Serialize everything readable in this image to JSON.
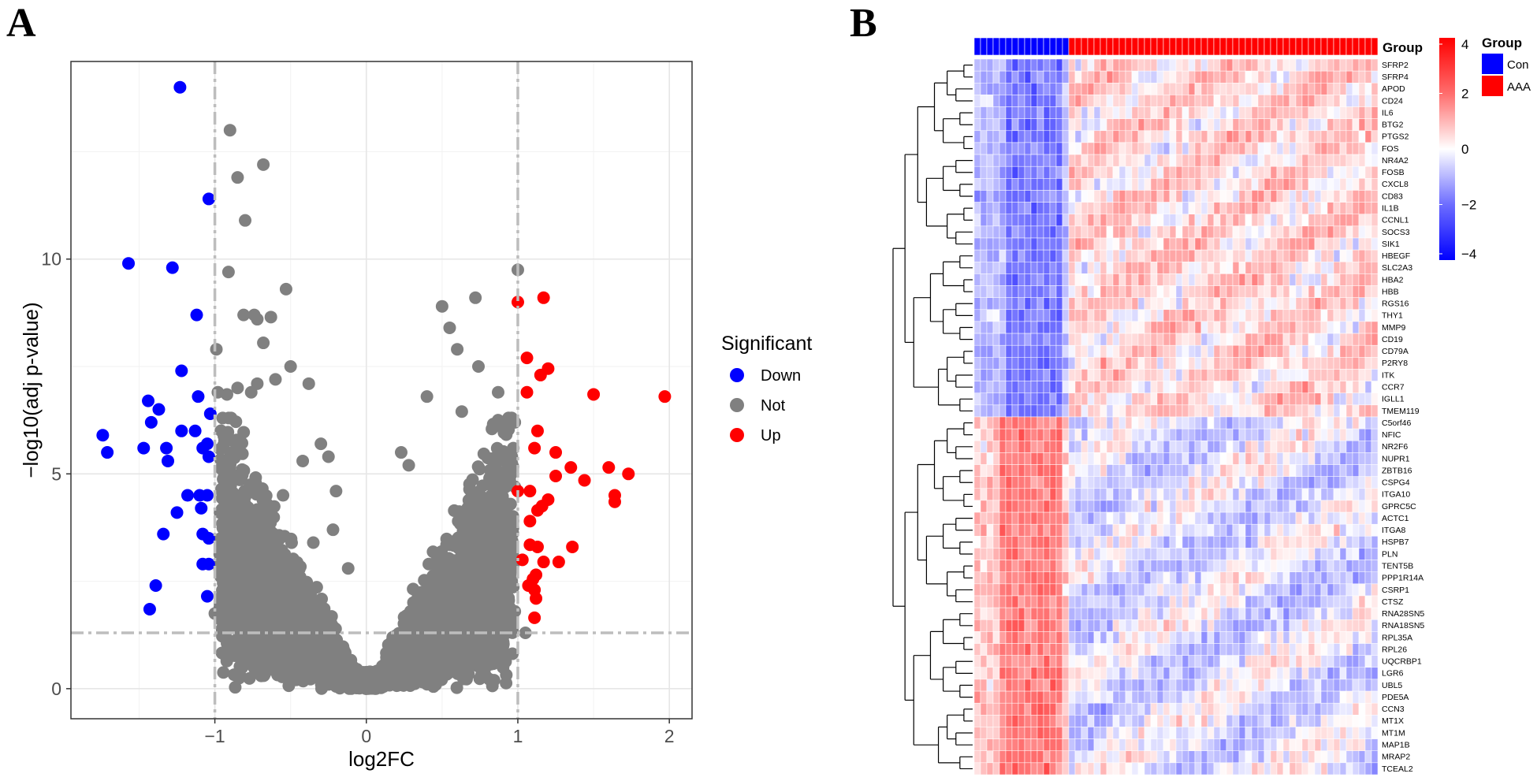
{
  "panels": {
    "a": "A",
    "b": "B"
  },
  "chart_data": [
    {
      "type": "scatter",
      "title": "",
      "xlabel": "log2FC",
      "ylabel": "−log10(adj p-value)",
      "xlim": [
        -1.95,
        2.15
      ],
      "ylim": [
        -0.7,
        14.6
      ],
      "x_ticks": [
        -1,
        0,
        1,
        2
      ],
      "x_tick_labels": [
        "−1",
        "0",
        "1",
        "2"
      ],
      "y_ticks": [
        0,
        5,
        10
      ],
      "y_tick_labels": [
        "0",
        "5",
        "10"
      ],
      "threshold_lines": {
        "x": [
          -1,
          1
        ],
        "y": 1.3
      },
      "legend": {
        "title": "Significant",
        "placement": "right",
        "entries": [
          {
            "label": "Down",
            "color": "#0000ff"
          },
          {
            "label": "Not",
            "color": "#808080"
          },
          {
            "label": "Up",
            "color": "#ff0000"
          }
        ]
      },
      "colors": {
        "Down": "#0000ff",
        "Not": "#808080",
        "Up": "#ff0000"
      },
      "series": [
        {
          "name": "Down",
          "points": [
            [
              -1.23,
              14.0
            ],
            [
              -1.04,
              11.4
            ],
            [
              -1.57,
              9.9
            ],
            [
              -1.28,
              9.8
            ],
            [
              -1.12,
              8.7
            ],
            [
              -1.22,
              7.4
            ],
            [
              -1.11,
              6.8
            ],
            [
              -1.44,
              6.7
            ],
            [
              -1.37,
              6.5
            ],
            [
              -1.42,
              6.2
            ],
            [
              -1.03,
              6.4
            ],
            [
              -1.22,
              6.0
            ],
            [
              -1.74,
              5.9
            ],
            [
              -1.13,
              6.0
            ],
            [
              -1.71,
              5.5
            ],
            [
              -1.47,
              5.6
            ],
            [
              -1.32,
              5.6
            ],
            [
              -1.05,
              5.7
            ],
            [
              -1.08,
              5.6
            ],
            [
              -1.31,
              5.3
            ],
            [
              -1.04,
              5.4
            ],
            [
              -1.18,
              4.5
            ],
            [
              -1.1,
              4.5
            ],
            [
              -1.05,
              4.5
            ],
            [
              -1.25,
              4.1
            ],
            [
              -1.09,
              4.2
            ],
            [
              -1.34,
              3.6
            ],
            [
              -1.08,
              3.6
            ],
            [
              -1.04,
              3.5
            ],
            [
              -1.08,
              2.9
            ],
            [
              -1.04,
              2.9
            ],
            [
              -1.39,
              2.4
            ],
            [
              -1.05,
              2.15
            ],
            [
              -1.43,
              1.85
            ]
          ]
        },
        {
          "name": "Up",
          "points": [
            [
              1.97,
              6.8
            ],
            [
              1.17,
              9.1
            ],
            [
              1.0,
              9.0
            ],
            [
              1.06,
              7.7
            ],
            [
              1.15,
              7.3
            ],
            [
              1.2,
              7.45
            ],
            [
              1.5,
              6.85
            ],
            [
              1.06,
              6.9
            ],
            [
              1.13,
              6.0
            ],
            [
              1.11,
              5.6
            ],
            [
              1.25,
              5.5
            ],
            [
              1.6,
              5.15
            ],
            [
              1.35,
              5.15
            ],
            [
              1.25,
              4.95
            ],
            [
              1.73,
              5.0
            ],
            [
              1.44,
              4.85
            ],
            [
              1.64,
              4.5
            ],
            [
              1.64,
              4.35
            ],
            [
              1.0,
              4.6
            ],
            [
              1.08,
              4.6
            ],
            [
              1.2,
              4.4
            ],
            [
              1.13,
              4.15
            ],
            [
              1.16,
              4.25
            ],
            [
              1.08,
              3.9
            ],
            [
              1.36,
              3.3
            ],
            [
              1.08,
              3.35
            ],
            [
              1.13,
              3.3
            ],
            [
              1.03,
              3.0
            ],
            [
              1.17,
              2.95
            ],
            [
              1.27,
              2.95
            ],
            [
              1.12,
              2.65
            ],
            [
              1.1,
              2.55
            ],
            [
              1.07,
              2.4
            ],
            [
              1.11,
              2.3
            ],
            [
              1.12,
              2.1
            ],
            [
              1.11,
              1.65
            ]
          ]
        },
        {
          "name": "Not",
          "points": [
            [
              -0.9,
              13.0
            ],
            [
              -0.68,
              12.2
            ],
            [
              -0.85,
              11.9
            ],
            [
              -0.8,
              10.9
            ],
            [
              -0.91,
              9.7
            ],
            [
              -0.53,
              9.3
            ],
            [
              -0.81,
              8.7
            ],
            [
              -0.63,
              8.65
            ],
            [
              -0.72,
              8.6
            ],
            [
              -0.74,
              8.7
            ],
            [
              -0.68,
              8.05
            ],
            [
              -0.99,
              7.9
            ],
            [
              -0.5,
              7.5
            ],
            [
              -0.6,
              7.2
            ],
            [
              -0.72,
              7.1
            ],
            [
              -0.85,
              7.0
            ],
            [
              -0.38,
              7.1
            ],
            [
              -0.98,
              6.9
            ],
            [
              -0.92,
              6.85
            ],
            [
              -0.76,
              6.9
            ],
            [
              0.5,
              8.9
            ],
            [
              0.72,
              9.1
            ],
            [
              0.55,
              8.4
            ],
            [
              0.6,
              7.9
            ],
            [
              1.0,
              9.75
            ],
            [
              0.74,
              7.5
            ],
            [
              0.87,
              6.9
            ],
            [
              0.98,
              6.2
            ],
            [
              0.4,
              6.8
            ],
            [
              0.87,
              6.25
            ],
            [
              0.63,
              6.45
            ],
            [
              0.23,
              5.5
            ],
            [
              0.28,
              5.2
            ],
            [
              0.97,
              5.6
            ],
            [
              0.96,
              5.4
            ],
            [
              0.93,
              5.1
            ],
            [
              0.98,
              4.7
            ],
            [
              0.88,
              4.5
            ],
            [
              -0.25,
              5.4
            ],
            [
              -0.3,
              5.7
            ],
            [
              -0.42,
              5.3
            ],
            [
              -0.55,
              4.5
            ],
            [
              -0.2,
              4.6
            ],
            [
              -0.82,
              5.1
            ],
            [
              -0.94,
              4.6
            ],
            [
              -0.22,
              3.7
            ],
            [
              -0.35,
              3.4
            ],
            [
              -0.12,
              2.8
            ],
            [
              -0.4,
              2.1
            ],
            [
              0.95,
              2.8
            ],
            [
              0.85,
              2.4
            ],
            [
              0.7,
              1.7
            ],
            [
              0.6,
              1.4
            ],
            [
              0.55,
              0.9
            ],
            [
              -0.7,
              1.0
            ],
            [
              -0.72,
              1.6
            ],
            [
              -0.85,
              1.8
            ],
            [
              -1.0,
              1.75
            ],
            [
              -0.95,
              1.6
            ],
            [
              1.05,
              1.3
            ],
            [
              0.98,
              1.8
            ]
          ]
        }
      ]
    },
    {
      "type": "heatmap",
      "title": "",
      "row_labels": [
        "SFRP2",
        "SFRP4",
        "APOD",
        "CD24",
        "IL6",
        "BTG2",
        "PTGS2",
        "FOS",
        "NR4A2",
        "FOSB",
        "CXCL8",
        "CD83",
        "IL1B",
        "CCNL1",
        "SOCS3",
        "SIK1",
        "HBEGF",
        "SLC2A3",
        "HBA2",
        "HBB",
        "RGS16",
        "THY1",
        "MMP9",
        "CD19",
        "CD79A",
        "P2RY8",
        "ITK",
        "CCR7",
        "IGLL1",
        "TMEM119",
        "C5orf46",
        "NFIC",
        "NR2F6",
        "NUPR1",
        "ZBTB16",
        "CSPG4",
        "ITGA10",
        "GPRC5C",
        "ACTC1",
        "ITGA8",
        "HSPB7",
        "PLN",
        "TENT5B",
        "PPP1R14A",
        "CSRP1",
        "CTSZ",
        "RNA28SN5",
        "RNA18SN5",
        "RPL35A",
        "RPL26",
        "UQCRBP1",
        "LGR6",
        "UBL5",
        "PDE5A",
        "CCN3",
        "MT1X",
        "MT1M",
        "MAP1B",
        "MRAP2",
        "TCEAL2"
      ],
      "row_cluster_signs": [
        1,
        1,
        1,
        1,
        1,
        1,
        1,
        1,
        1,
        1,
        1,
        1,
        1,
        1,
        1,
        1,
        1,
        1,
        1,
        1,
        1,
        1,
        1,
        1,
        1,
        1,
        1,
        1,
        1,
        1,
        -1,
        -1,
        -1,
        -1,
        -1,
        -1,
        -1,
        -1,
        -1,
        -1,
        -1,
        -1,
        -1,
        -1,
        -1,
        -1,
        -1,
        -1,
        -1,
        -1,
        -1,
        -1,
        -1,
        -1,
        -1,
        -1,
        -1,
        -1,
        -1,
        -1
      ],
      "annotation_title": "Group",
      "groups": [
        {
          "name": "Con",
          "count": 15,
          "color": "#0000ff"
        },
        {
          "name": "AAA",
          "count": 49,
          "color": "#ff0000"
        }
      ],
      "color_scale": {
        "min": -4,
        "max": 4,
        "low": "#0000ff",
        "mid": "#ffffff",
        "high": "#ff0000",
        "ticks": [
          4,
          2,
          0,
          -2,
          -4
        ],
        "tick_labels": [
          "4",
          "2",
          "0",
          "−2",
          "−4"
        ]
      },
      "legend_title": "Group"
    }
  ]
}
